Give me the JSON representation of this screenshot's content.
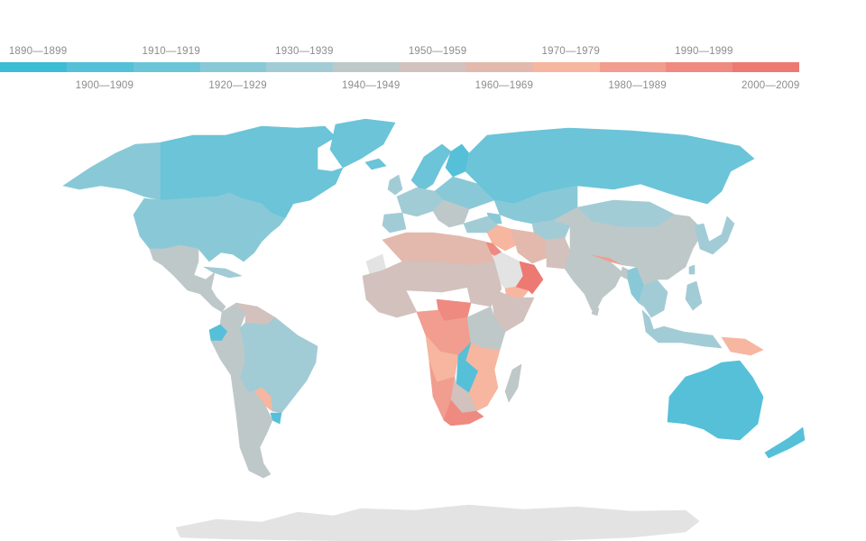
{
  "legend": {
    "bins": [
      {
        "label": "1890—1899",
        "color": "#3dbcd6"
      },
      {
        "label": "1900—1909",
        "color": "#55c0d8"
      },
      {
        "label": "1910—1919",
        "color": "#6bc4d8"
      },
      {
        "label": "1920—1929",
        "color": "#89c9d7"
      },
      {
        "label": "1930—1939",
        "color": "#a2ccd5"
      },
      {
        "label": "1940—1949",
        "color": "#bec8c9"
      },
      {
        "label": "1950—1959",
        "color": "#d2c1bd"
      },
      {
        "label": "1960—1969",
        "color": "#e2b9ac"
      },
      {
        "label": "1970—1979",
        "color": "#f6b6a0"
      },
      {
        "label": "1980—1989",
        "color": "#f19d8f"
      },
      {
        "label": "1990—1999",
        "color": "#ee8a80"
      },
      {
        "label": "2000—2009",
        "color": "#ec7a72"
      }
    ]
  },
  "map": {
    "no_data_color": "#e3e3e3",
    "regions": [
      {
        "name": "canada",
        "bin": 2
      },
      {
        "name": "alaska",
        "bin": 3
      },
      {
        "name": "greenland",
        "bin": 2
      },
      {
        "name": "united-states",
        "bin": 3
      },
      {
        "name": "mexico",
        "bin": 5
      },
      {
        "name": "central-america",
        "bin": 5
      },
      {
        "name": "cuba",
        "bin": 4
      },
      {
        "name": "colombia",
        "bin": 5
      },
      {
        "name": "venezuela",
        "bin": 6
      },
      {
        "name": "ecuador",
        "bin": 1
      },
      {
        "name": "peru",
        "bin": 5
      },
      {
        "name": "brazil",
        "bin": 4
      },
      {
        "name": "bolivia",
        "bin": 4
      },
      {
        "name": "paraguay",
        "bin": 8
      },
      {
        "name": "uruguay",
        "bin": 1
      },
      {
        "name": "chile",
        "bin": 5
      },
      {
        "name": "argentina",
        "bin": 5
      },
      {
        "name": "iceland",
        "bin": 2
      },
      {
        "name": "uk-ireland",
        "bin": 4
      },
      {
        "name": "scandinavia",
        "bin": 2
      },
      {
        "name": "finland",
        "bin": 1
      },
      {
        "name": "western-europe",
        "bin": 4
      },
      {
        "name": "iberia",
        "bin": 4
      },
      {
        "name": "eastern-europe",
        "bin": 3
      },
      {
        "name": "balkans",
        "bin": 5
      },
      {
        "name": "russia",
        "bin": 2
      },
      {
        "name": "turkey",
        "bin": 4
      },
      {
        "name": "caucasus",
        "bin": 3
      },
      {
        "name": "kazakhstan",
        "bin": 3
      },
      {
        "name": "central-asia",
        "bin": 4
      },
      {
        "name": "iran",
        "bin": 7
      },
      {
        "name": "afghanistan-pakistan",
        "bin": 6
      },
      {
        "name": "iraq-syria",
        "bin": 8
      },
      {
        "name": "jordan-israel",
        "bin": 10
      },
      {
        "name": "saudi-arabia",
        "bin": null
      },
      {
        "name": "yemen",
        "bin": 8
      },
      {
        "name": "oman-uae",
        "bin": 11
      },
      {
        "name": "india",
        "bin": 5
      },
      {
        "name": "nepal-bhutan",
        "bin": 9
      },
      {
        "name": "bangladesh",
        "bin": 5
      },
      {
        "name": "myanmar",
        "bin": 3
      },
      {
        "name": "indochina",
        "bin": 4
      },
      {
        "name": "malay-peninsula",
        "bin": 4
      },
      {
        "name": "mongolia",
        "bin": 4
      },
      {
        "name": "china",
        "bin": 5
      },
      {
        "name": "korea-japan",
        "bin": 4
      },
      {
        "name": "taiwan",
        "bin": 4
      },
      {
        "name": "philippines",
        "bin": 4
      },
      {
        "name": "indonesia",
        "bin": 4
      },
      {
        "name": "new-guinea",
        "bin": 8
      },
      {
        "name": "australia",
        "bin": 1
      },
      {
        "name": "new-zealand",
        "bin": 1
      },
      {
        "name": "sri-lanka",
        "bin": 5
      },
      {
        "name": "north-africa",
        "bin": 7
      },
      {
        "name": "western-sahara",
        "bin": null
      },
      {
        "name": "sahel",
        "bin": 6
      },
      {
        "name": "west-africa",
        "bin": 6
      },
      {
        "name": "sudan",
        "bin": 6
      },
      {
        "name": "ethiopia-somalia",
        "bin": 6
      },
      {
        "name": "central-africa",
        "bin": 10
      },
      {
        "name": "congo",
        "bin": 9
      },
      {
        "name": "east-africa",
        "bin": 5
      },
      {
        "name": "tanzania",
        "bin": 8
      },
      {
        "name": "angola",
        "bin": 8
      },
      {
        "name": "zambia",
        "bin": 1
      },
      {
        "name": "mozambique",
        "bin": 8
      },
      {
        "name": "namibia",
        "bin": 9
      },
      {
        "name": "botswana-zimbabwe",
        "bin": 6
      },
      {
        "name": "south-africa",
        "bin": 10
      },
      {
        "name": "madagascar",
        "bin": 5
      },
      {
        "name": "antarctica",
        "bin": null
      }
    ]
  }
}
